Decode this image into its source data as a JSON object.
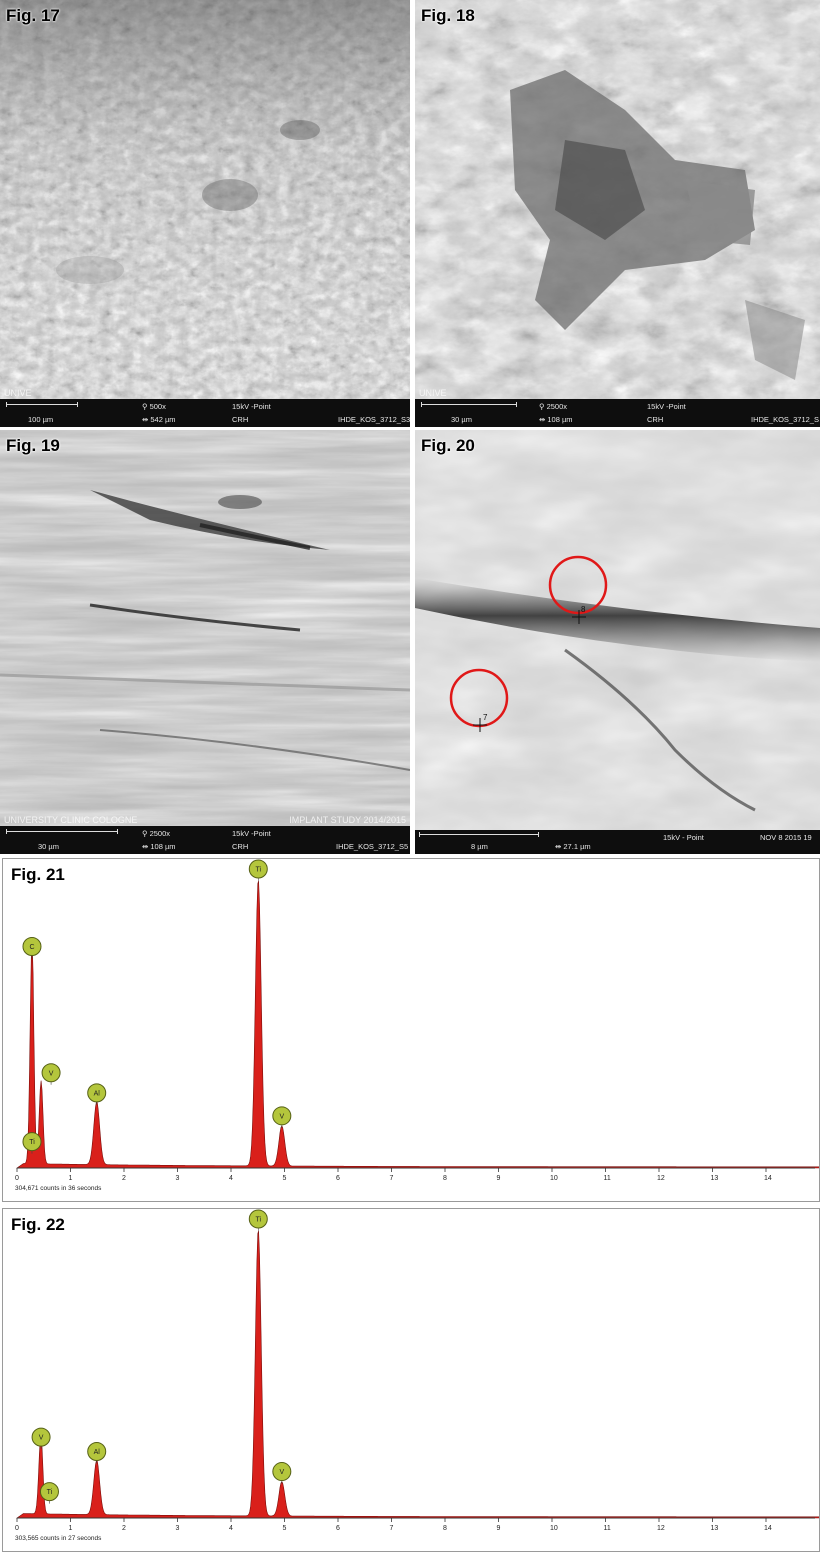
{
  "figures": {
    "fig17": {
      "label": "Fig. 17",
      "scale": "100 µm",
      "mag": "500x",
      "hfw": "542 µm",
      "kv": "15kV -Point",
      "det": "CRH",
      "id": "IHDE_KOS_3712_S3",
      "overlay_left": "UNIVE"
    },
    "fig18": {
      "label": "Fig. 18",
      "scale": "30 µm",
      "mag": "2500x",
      "hfw": "108 µm",
      "kv": "15kV -Point",
      "det": "CRH",
      "id": "IHDE_KOS_3712_S",
      "overlay_left": "UNIVE"
    },
    "fig19": {
      "label": "Fig. 19",
      "scale": "30 µm",
      "mag": "2500x",
      "hfw": "108 µm",
      "kv": "15kV -Point",
      "det": "CRH",
      "id": "IHDE_KOS_3712_S5",
      "overlay_left": "UNIVERSITY CLINIC COLOGNE",
      "overlay_right": "IMPLANT STUDY 2014/2015"
    },
    "fig20": {
      "label": "Fig. 20",
      "scale": "8 µm",
      "hfw": "27.1 µm",
      "kv": "15kV - Point",
      "date": "NOV 8 2015 19",
      "point_a": "8",
      "point_b": "7"
    },
    "fig21": {
      "label": "Fig. 21",
      "counts": "304,671 counts in 36 seconds"
    },
    "fig22": {
      "label": "Fig. 22",
      "counts": "303,565 counts in 27 seconds"
    }
  },
  "chart_data": [
    {
      "type": "line",
      "title": "",
      "xlabel": "",
      "ylabel": "",
      "xlim": [
        0,
        15
      ],
      "ylim": [
        0,
        100
      ],
      "x_ticks": [
        0,
        1,
        2,
        3,
        4,
        5,
        6,
        7,
        8,
        9,
        10,
        11,
        12,
        13,
        14
      ],
      "peaks": [
        {
          "element": "C",
          "x": 0.28,
          "y": 73
        },
        {
          "element": "V",
          "x": 0.45,
          "y": 29
        },
        {
          "element": "Ti",
          "x": 0.28,
          "y": 5
        },
        {
          "element": "Al",
          "x": 1.49,
          "y": 22
        },
        {
          "element": "Ti",
          "x": 4.51,
          "y": 100
        },
        {
          "element": "V",
          "x": 4.95,
          "y": 14
        }
      ],
      "fill_color": "#d9201b"
    },
    {
      "type": "line",
      "title": "",
      "xlabel": "",
      "ylabel": "",
      "xlim": [
        0,
        15
      ],
      "ylim": [
        0,
        100
      ],
      "x_ticks": [
        0,
        1,
        2,
        3,
        4,
        5,
        6,
        7,
        8,
        9,
        10,
        11,
        12,
        13,
        14
      ],
      "peaks": [
        {
          "element": "V",
          "x": 0.45,
          "y": 24
        },
        {
          "element": "Ti",
          "x": 0.42,
          "y": 5
        },
        {
          "element": "Al",
          "x": 1.49,
          "y": 19
        },
        {
          "element": "Ti",
          "x": 4.51,
          "y": 100
        },
        {
          "element": "V",
          "x": 4.95,
          "y": 12
        }
      ],
      "fill_color": "#d9201b"
    }
  ]
}
